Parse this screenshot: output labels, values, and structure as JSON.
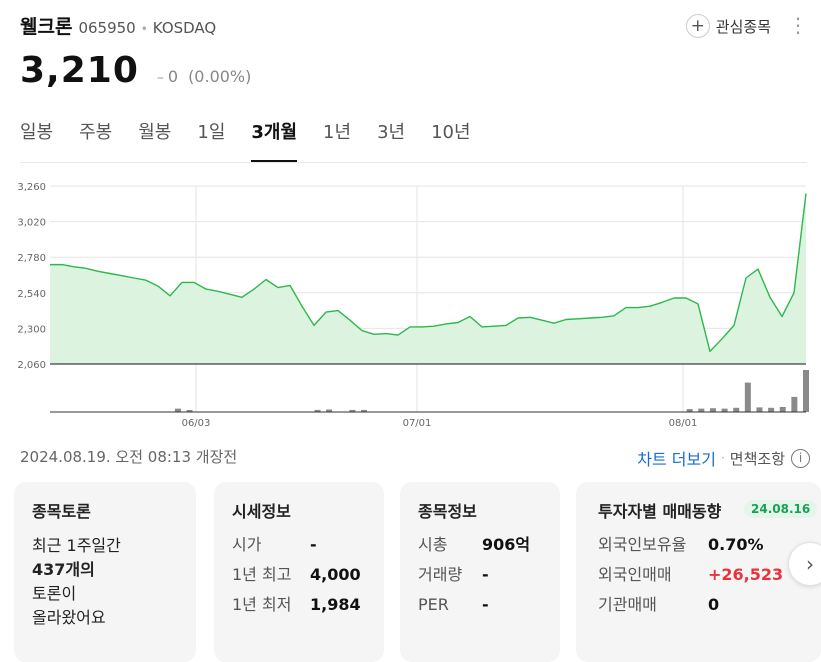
{
  "stock": {
    "name": "웰크론",
    "code": "065950",
    "separator": "•",
    "market": "KOSDAQ",
    "price": "3,210",
    "change_dash": "–",
    "change": "0",
    "change_percent": "(0.00%)"
  },
  "watchlist": {
    "icon": "plus-icon",
    "label": "관심종목"
  },
  "more_icon": "kebab-icon",
  "tabs": [
    {
      "label": "일봉",
      "active": false
    },
    {
      "label": "주봉",
      "active": false
    },
    {
      "label": "월봉",
      "active": false
    },
    {
      "label": "1일",
      "active": false
    },
    {
      "label": "3개월",
      "active": true
    },
    {
      "label": "1년",
      "active": false
    },
    {
      "label": "3년",
      "active": false
    },
    {
      "label": "10년",
      "active": false
    }
  ],
  "chart_data": {
    "type": "area",
    "y_ticks": [
      "3,260",
      "3,020",
      "2,780",
      "2,540",
      "2,300",
      "2,060"
    ],
    "ylim": [
      2060,
      3260
    ],
    "x_labels": [
      "06/03",
      "07/01",
      "08/01"
    ],
    "grid": true,
    "series": [
      {
        "values": [
          2730,
          2730,
          2715,
          2705,
          2685,
          2670,
          2655,
          2640,
          2625,
          2585,
          2520,
          2610,
          2610,
          2565,
          2550,
          2530,
          2510,
          2565,
          2630,
          2575,
          2590,
          2450,
          2320,
          2410,
          2420,
          2355,
          2285,
          2260,
          2265,
          2255,
          2310,
          2310,
          2315,
          2330,
          2340,
          2380,
          2310,
          2315,
          2320,
          2370,
          2375,
          2355,
          2335,
          2360,
          2365,
          2370,
          2375,
          2385,
          2440,
          2440,
          2450,
          2475,
          2505,
          2505,
          2465,
          2145,
          2230,
          2320,
          2640,
          2700,
          2510,
          2380,
          2540,
          3210
        ],
        "color": "#2db84b",
        "fill": "#dcf4df"
      }
    ],
    "volume": [
      0,
      0,
      0,
      0,
      0,
      0,
      0,
      0,
      0,
      0,
      0,
      0.08,
      0.04,
      0,
      0,
      0,
      0,
      0,
      0,
      0,
      0,
      0,
      0,
      0.05,
      0.06,
      0,
      0.05,
      0.05,
      0,
      0,
      0,
      0,
      0,
      0,
      0,
      0,
      0,
      0,
      0,
      0,
      0,
      0,
      0,
      0,
      0,
      0,
      0,
      0,
      0,
      0,
      0,
      0,
      0,
      0,
      0,
      0.07,
      0.08,
      0.09,
      0.08,
      0.1,
      0.7,
      0.11,
      0.1,
      0.12,
      0.36,
      1.0
    ],
    "colors": {
      "line": "#2db84b",
      "area": "#dcf4df",
      "volume": "#8a8a8a",
      "grid": "#e6e6e6"
    }
  },
  "status": {
    "timestamp": "2024.08.19. 오전 08:13 개장전",
    "more_chart": "차트 더보기",
    "separator": "·",
    "disclaimer": "면책조항",
    "info_icon": "info-icon"
  },
  "cards": {
    "discussion": {
      "title": "종목토론",
      "lines": [
        "최근 1주일간",
        "437개의",
        "토론이",
        "올라왔어요"
      ]
    },
    "market_info": {
      "title": "시세정보",
      "rows": [
        {
          "label": "시가",
          "value": "-"
        },
        {
          "label": "1년 최고",
          "value": "4,000"
        },
        {
          "label": "1년 최저",
          "value": "1,984"
        }
      ]
    },
    "stock_info": {
      "title": "종목정보",
      "rows": [
        {
          "label": "시총",
          "value": "906억"
        },
        {
          "label": "거래량",
          "value": "-"
        },
        {
          "label": "PER",
          "value": "-"
        }
      ]
    },
    "investor": {
      "title": "투자자별 매매동향",
      "badge": "24.08.16",
      "rows": [
        {
          "label": "외국인보유율",
          "value": "0.70%"
        },
        {
          "label": "외국인매매",
          "value": "+26,523"
        },
        {
          "label": "기관매매",
          "value": "0"
        }
      ]
    }
  },
  "next_icon": "chevron-right-icon"
}
